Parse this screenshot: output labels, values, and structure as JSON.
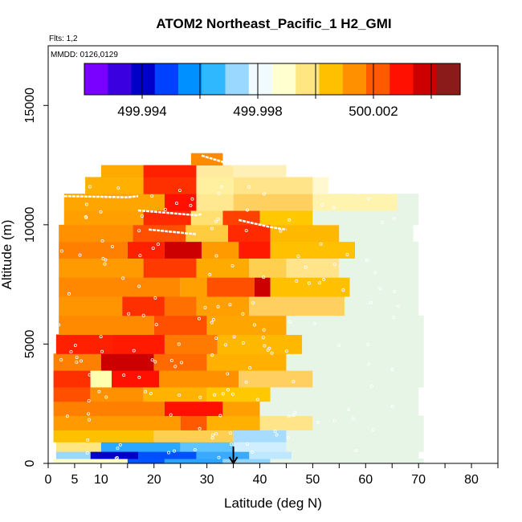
{
  "chart_data": {
    "type": "heatmap",
    "title": "ATOM2 Northeast_Pacific_1 H2_GMI",
    "flights_label": "Flts: 1,2",
    "dates_label": "MMDD: 0126,0129",
    "xlabel": "Latitude (deg N)",
    "ylabel": "Altitude (m)",
    "xlim": [
      0,
      85
    ],
    "ylim": [
      0,
      17500
    ],
    "x_ticks": [
      0,
      5,
      10,
      20,
      30,
      40,
      50,
      60,
      70,
      80
    ],
    "y_ticks": [
      0,
      5000,
      10000,
      15000
    ],
    "colorbar": {
      "range": [
        499.992,
        500.005
      ],
      "labeled_ticks": [
        499.994,
        499.998,
        500.002
      ],
      "tick_labels": [
        "499.994",
        "499.998",
        "500.002"
      ],
      "colors": [
        "#7a00ff",
        "#3a00e0",
        "#0000c8",
        "#0040ff",
        "#0090ff",
        "#30b8ff",
        "#9ad8ff",
        "#f0faff",
        "#ffffd0",
        "#ffe680",
        "#ffc000",
        "#ff9000",
        "#ff5a00",
        "#ff1000",
        "#cc0000",
        "#8b1a1a"
      ]
    },
    "marker": {
      "latitude": 35,
      "label": "arrow"
    },
    "grid": false,
    "legend": "none"
  }
}
